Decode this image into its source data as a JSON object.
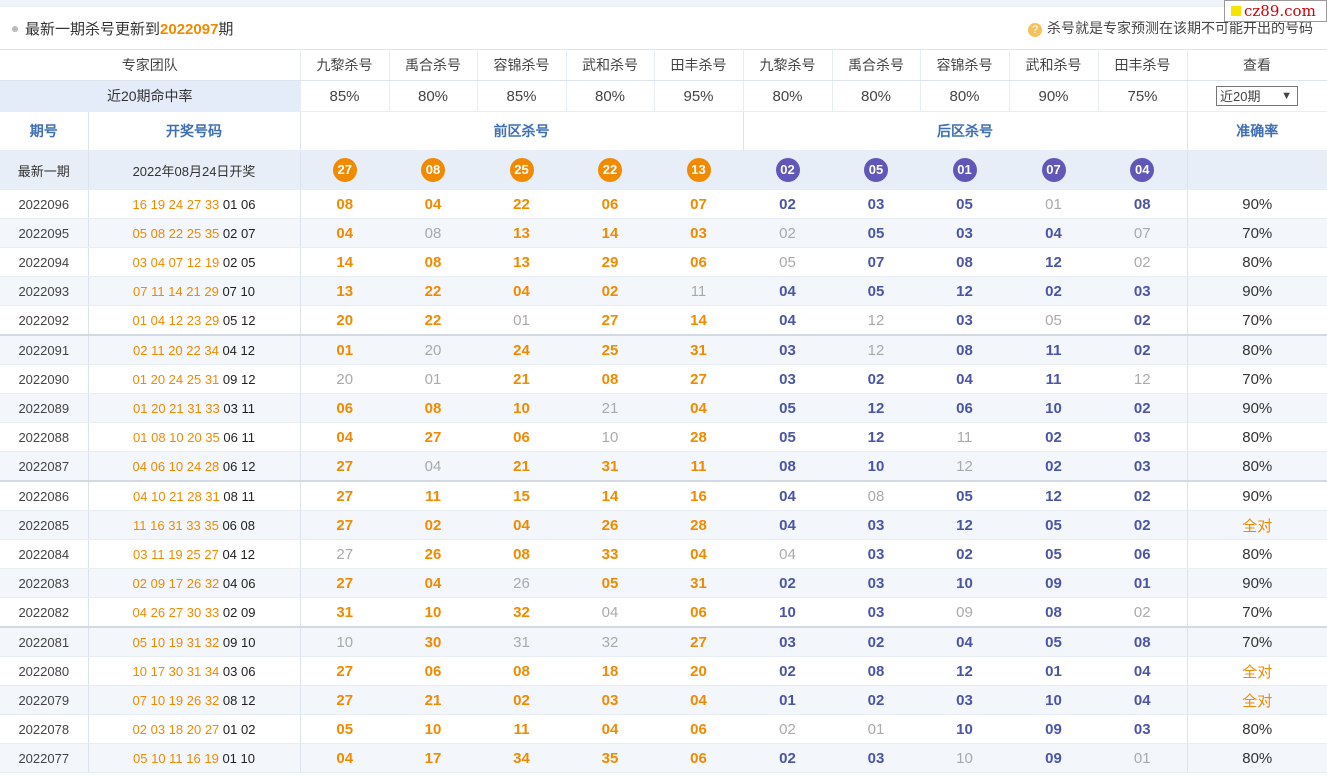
{
  "notice": {
    "text_prefix": "最新一期杀号更新到",
    "issue": "2022097",
    "text_suffix": "期",
    "hint": "杀号就是专家预测在该期不可能开出的号码",
    "hint_icon": "question-icon"
  },
  "logo": {
    "text": "cz89.com"
  },
  "team_row": {
    "label": "专家团队",
    "experts": [
      "九黎杀号",
      "禹合杀号",
      "容锦杀号",
      "武和杀号",
      "田丰杀号",
      "九黎杀号",
      "禹合杀号",
      "容锦杀号",
      "武和杀号",
      "田丰杀号"
    ],
    "view_label": "查看"
  },
  "rate_row": {
    "label": "近20期命中率",
    "rates": [
      "85%",
      "80%",
      "85%",
      "80%",
      "95%",
      "80%",
      "80%",
      "80%",
      "90%",
      "75%"
    ],
    "period_select": "近20期",
    "select_arrow": "▼"
  },
  "header": {
    "issue": "期号",
    "draw": "开奖号码",
    "front": "前区杀号",
    "back": "后区杀号",
    "accuracy": "准确率"
  },
  "latest": {
    "label": "最新一期",
    "date": "2022年08月24日开奖",
    "front": [
      "27",
      "08",
      "25",
      "22",
      "13"
    ],
    "back": [
      "02",
      "05",
      "01",
      "07",
      "04"
    ]
  },
  "rows": [
    {
      "issue": "2022096",
      "draw_front": "16 19 24 27 33",
      "draw_back": "01 06",
      "kills": [
        "08",
        "04",
        "22",
        "06",
        "07",
        "02",
        "03",
        "05",
        "01",
        "08"
      ],
      "miss": [
        8
      ],
      "acc": "90%"
    },
    {
      "issue": "2022095",
      "draw_front": "05 08 22 25 35",
      "draw_back": "02 07",
      "kills": [
        "04",
        "08",
        "13",
        "14",
        "03",
        "02",
        "05",
        "03",
        "04",
        "07"
      ],
      "miss": [
        1,
        5,
        9
      ],
      "acc": "70%"
    },
    {
      "issue": "2022094",
      "draw_front": "03 04 07 12 19",
      "draw_back": "02 05",
      "kills": [
        "14",
        "08",
        "13",
        "29",
        "06",
        "05",
        "07",
        "08",
        "12",
        "02"
      ],
      "miss": [
        5,
        9
      ],
      "acc": "80%"
    },
    {
      "issue": "2022093",
      "draw_front": "07 11 14 21 29",
      "draw_back": "07 10",
      "kills": [
        "13",
        "22",
        "04",
        "02",
        "11",
        "04",
        "05",
        "12",
        "02",
        "03"
      ],
      "miss": [
        4
      ],
      "acc": "90%"
    },
    {
      "issue": "2022092",
      "draw_front": "01 04 12 23 29",
      "draw_back": "05 12",
      "kills": [
        "20",
        "22",
        "01",
        "27",
        "14",
        "04",
        "12",
        "03",
        "05",
        "02"
      ],
      "miss": [
        2,
        6,
        8
      ],
      "acc": "70%"
    },
    {
      "issue": "2022091",
      "draw_front": "02 11 20 22 34",
      "draw_back": "04 12",
      "kills": [
        "01",
        "20",
        "24",
        "25",
        "31",
        "03",
        "12",
        "08",
        "11",
        "02"
      ],
      "miss": [
        1,
        6
      ],
      "acc": "80%"
    },
    {
      "issue": "2022090",
      "draw_front": "01 20 24 25 31",
      "draw_back": "09 12",
      "kills": [
        "20",
        "01",
        "21",
        "08",
        "27",
        "03",
        "02",
        "04",
        "11",
        "12"
      ],
      "miss": [
        0,
        1,
        9
      ],
      "acc": "70%"
    },
    {
      "issue": "2022089",
      "draw_front": "01 20 21 31 33",
      "draw_back": "03 11",
      "kills": [
        "06",
        "08",
        "10",
        "21",
        "04",
        "05",
        "12",
        "06",
        "10",
        "02"
      ],
      "miss": [
        3
      ],
      "acc": "90%"
    },
    {
      "issue": "2022088",
      "draw_front": "01 08 10 20 35",
      "draw_back": "06 11",
      "kills": [
        "04",
        "27",
        "06",
        "10",
        "28",
        "05",
        "12",
        "11",
        "02",
        "03"
      ],
      "miss": [
        3,
        7
      ],
      "acc": "80%"
    },
    {
      "issue": "2022087",
      "draw_front": "04 06 10 24 28",
      "draw_back": "06 12",
      "kills": [
        "27",
        "04",
        "21",
        "31",
        "11",
        "08",
        "10",
        "12",
        "02",
        "03"
      ],
      "miss": [
        1,
        7
      ],
      "acc": "80%"
    },
    {
      "issue": "2022086",
      "draw_front": "04 10 21 28 31",
      "draw_back": "08 11",
      "kills": [
        "27",
        "11",
        "15",
        "14",
        "16",
        "04",
        "08",
        "05",
        "12",
        "02"
      ],
      "miss": [
        6
      ],
      "acc": "90%"
    },
    {
      "issue": "2022085",
      "draw_front": "11 16 31 33 35",
      "draw_back": "06 08",
      "kills": [
        "27",
        "02",
        "04",
        "26",
        "28",
        "04",
        "03",
        "12",
        "05",
        "02"
      ],
      "miss": [],
      "acc": "全对"
    },
    {
      "issue": "2022084",
      "draw_front": "03 11 19 25 27",
      "draw_back": "04 12",
      "kills": [
        "27",
        "26",
        "08",
        "33",
        "04",
        "04",
        "03",
        "02",
        "05",
        "06"
      ],
      "miss": [
        0,
        5
      ],
      "acc": "80%"
    },
    {
      "issue": "2022083",
      "draw_front": "02 09 17 26 32",
      "draw_back": "04 06",
      "kills": [
        "27",
        "04",
        "26",
        "05",
        "31",
        "02",
        "03",
        "10",
        "09",
        "01"
      ],
      "miss": [
        2
      ],
      "acc": "90%"
    },
    {
      "issue": "2022082",
      "draw_front": "04 26 27 30 33",
      "draw_back": "02 09",
      "kills": [
        "31",
        "10",
        "32",
        "04",
        "06",
        "10",
        "03",
        "09",
        "08",
        "02"
      ],
      "miss": [
        3,
        7,
        9
      ],
      "acc": "70%"
    },
    {
      "issue": "2022081",
      "draw_front": "05 10 19 31 32",
      "draw_back": "09 10",
      "kills": [
        "10",
        "30",
        "31",
        "32",
        "27",
        "03",
        "02",
        "04",
        "05",
        "08"
      ],
      "miss": [
        0,
        2,
        3
      ],
      "acc": "70%"
    },
    {
      "issue": "2022080",
      "draw_front": "10 17 30 31 34",
      "draw_back": "03 06",
      "kills": [
        "27",
        "06",
        "08",
        "18",
        "20",
        "02",
        "08",
        "12",
        "01",
        "04"
      ],
      "miss": [],
      "acc": "全对"
    },
    {
      "issue": "2022079",
      "draw_front": "07 10 19 26 32",
      "draw_back": "08 12",
      "kills": [
        "27",
        "21",
        "02",
        "03",
        "04",
        "01",
        "02",
        "03",
        "10",
        "04"
      ],
      "miss": [],
      "acc": "全对"
    },
    {
      "issue": "2022078",
      "draw_front": "02 03 18 20 27",
      "draw_back": "01 02",
      "kills": [
        "05",
        "10",
        "11",
        "04",
        "06",
        "02",
        "01",
        "10",
        "09",
        "03"
      ],
      "miss": [
        5,
        6
      ],
      "acc": "80%"
    },
    {
      "issue": "2022077",
      "draw_front": "05 10 11 16 19",
      "draw_back": "01 10",
      "kills": [
        "04",
        "17",
        "34",
        "35",
        "06",
        "02",
        "03",
        "10",
        "09",
        "01"
      ],
      "miss": [
        7,
        9
      ],
      "acc": "80%"
    }
  ]
}
